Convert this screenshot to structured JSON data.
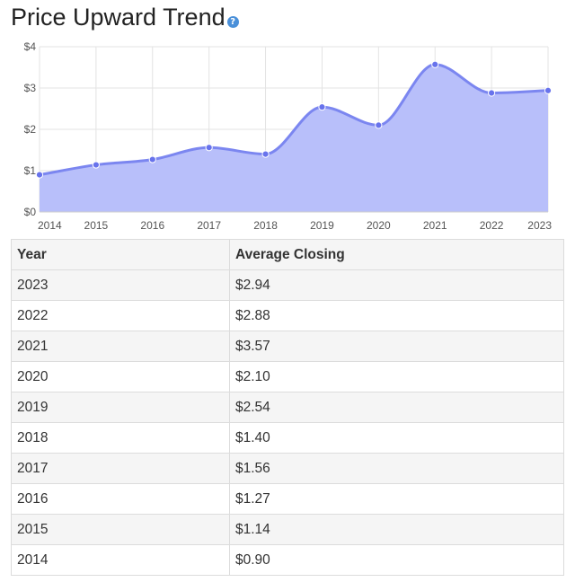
{
  "title": "Price Upward Trend",
  "help_icon": "question-icon",
  "chart_data": {
    "type": "area",
    "x": [
      2014,
      2015,
      2016,
      2017,
      2018,
      2019,
      2020,
      2021,
      2022,
      2023
    ],
    "values": [
      0.9,
      1.14,
      1.27,
      1.56,
      1.4,
      2.54,
      2.1,
      3.57,
      2.88,
      2.94
    ],
    "xlabel": "",
    "ylabel": "",
    "ylim": [
      0,
      4
    ],
    "yticks": [
      "$0",
      "$1",
      "$2",
      "$3",
      "$4"
    ],
    "xticks": [
      "2014",
      "2015",
      "2016",
      "2017",
      "2018",
      "2019",
      "2020",
      "2021",
      "2022",
      "2023"
    ],
    "grid": true,
    "fill_color": "#b8bffa",
    "line_color": "#7b86f0",
    "point_color": "#6873ec"
  },
  "table": {
    "headers": [
      "Year",
      "Average Closing"
    ],
    "rows": [
      [
        "2023",
        "$2.94"
      ],
      [
        "2022",
        "$2.88"
      ],
      [
        "2021",
        "$3.57"
      ],
      [
        "2020",
        "$2.10"
      ],
      [
        "2019",
        "$2.54"
      ],
      [
        "2018",
        "$1.40"
      ],
      [
        "2017",
        "$1.56"
      ],
      [
        "2016",
        "$1.27"
      ],
      [
        "2015",
        "$1.14"
      ],
      [
        "2014",
        "$0.90"
      ]
    ]
  }
}
